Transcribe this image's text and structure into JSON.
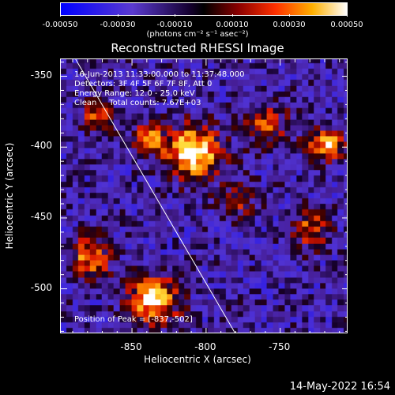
{
  "colorbar": {
    "ticks": [
      "-0.00050",
      "-0.00030",
      "-0.00010",
      "0.00010",
      "0.00030",
      "0.00050"
    ],
    "units": "(photons cm⁻² s⁻¹ asec⁻²)"
  },
  "info": {
    "line1": "16-Jun-2013 11:33:00.000 to 11:37:48.000",
    "line2": "Detectors: 3F 4F 5F 6F 7F 8F, Att 0",
    "line3": "Energy Range: 12.0 - 25.0 keV",
    "line4": "Clean     Total counts: 7.67E+03",
    "peak": "Position of Peak = [-837,-502]"
  },
  "footer": {
    "date": "14-May-2022 16:54"
  },
  "chart_data": {
    "type": "heatmap",
    "title": "Reconstructed RHESSI Image",
    "xlabel": "Heliocentric X (arcsec)",
    "ylabel": "Heliocentric Y (arcsec)",
    "xlim": [
      -898,
      -704
    ],
    "ylim": [
      -532,
      -338
    ],
    "xticks": [
      -850,
      -800,
      -750
    ],
    "yticks": [
      -350,
      -400,
      -450,
      -500
    ],
    "color_range": [
      -0.0005,
      0.0005
    ],
    "colormap": "blue-purple-black-red-orange-yellow-white",
    "limb_line": [
      [
        -888,
        -338
      ],
      [
        -780,
        -532
      ]
    ],
    "peak": [
      -837,
      -502
    ]
  }
}
